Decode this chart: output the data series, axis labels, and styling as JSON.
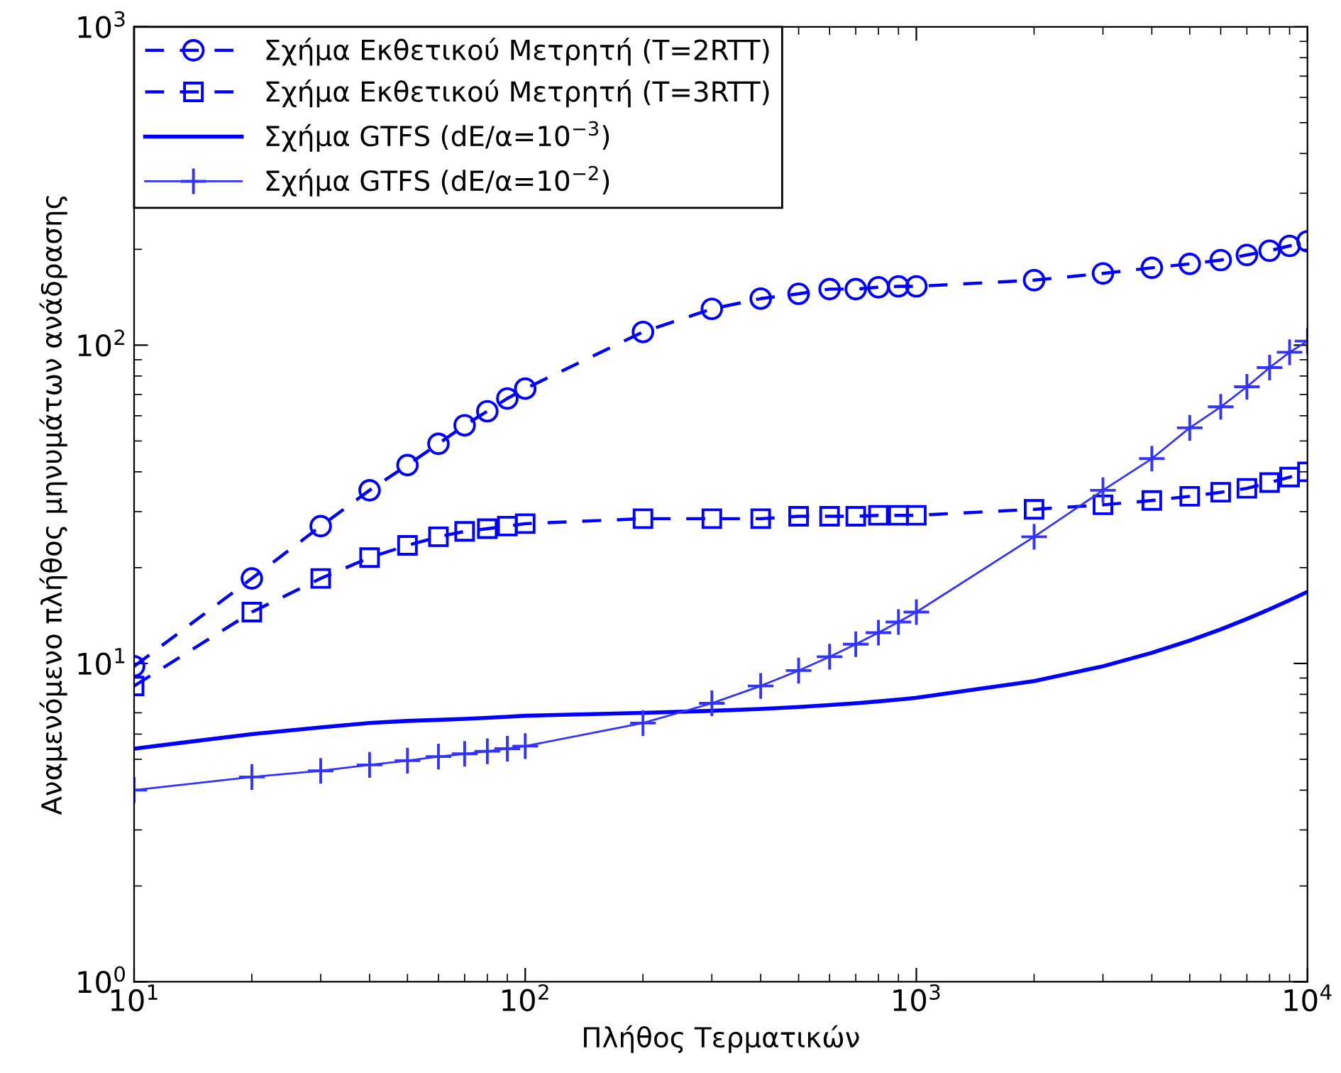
{
  "chart_data": {
    "type": "line",
    "xlabel": "Πλήθος Τερματικών",
    "ylabel": "Αναμενόμενο πλήθος μηνυμάτων ανάδρασης",
    "log": "xy",
    "grid": false,
    "legend": "top left",
    "x": [
      10,
      20,
      30,
      40,
      50,
      60,
      70,
      80,
      90,
      100,
      200,
      300,
      400,
      500,
      600,
      700,
      800,
      900,
      1000,
      2000,
      3000,
      4000,
      5000,
      6000,
      7000,
      8000,
      9000,
      10000
    ],
    "xlim": [
      10,
      10000
    ],
    "ylim": [
      1,
      1000
    ],
    "xticks": [
      {
        "value": 10,
        "label": "10$^{1}$"
      },
      {
        "value": 100,
        "label": "10$^{2}$"
      },
      {
        "value": 1000,
        "label": "10$^{3}$"
      },
      {
        "value": 10000,
        "label": "10$^{4}$"
      }
    ],
    "yticks": [
      {
        "value": 1,
        "label": "10$^{0}$"
      },
      {
        "value": 10,
        "label": "10$^{1}$"
      },
      {
        "value": 100,
        "label": "10$^{2}$"
      },
      {
        "value": 1000,
        "label": "10$^{3}$"
      }
    ],
    "series": [
      {
        "name": "Σχήμα Εκθετικού Μετρητή (T=2RTT)",
        "color": "#0000ff",
        "marker": "circle",
        "line_style": "dashed",
        "values": [
          9.8,
          18.5,
          27,
          35,
          42,
          49,
          56,
          62,
          68,
          73,
          110,
          130,
          140,
          145,
          150,
          150,
          152,
          153,
          153,
          160,
          168,
          175,
          180,
          185,
          192,
          198,
          205,
          212
        ]
      },
      {
        "name": "Σχήμα Εκθετικού Μετρητή (T=3RTT)",
        "color": "#0000ff",
        "marker": "square",
        "line_style": "dashed",
        "values": [
          8.5,
          14.5,
          18.5,
          21.5,
          23.5,
          25,
          26,
          26.5,
          27,
          27.5,
          28.5,
          28.5,
          28.5,
          29,
          29,
          29,
          29.2,
          29.2,
          29.2,
          30.5,
          31.5,
          32.5,
          33.5,
          34.5,
          35.5,
          37,
          38.5,
          40
        ]
      },
      {
        "name": "Σχήμα GTFS (dE/α=10$^{−3}$)",
        "color": "#0000ff",
        "marker": "none",
        "line_style": "solid",
        "values": [
          5.4,
          6.0,
          6.3,
          6.5,
          6.6,
          6.65,
          6.7,
          6.75,
          6.8,
          6.85,
          7.0,
          7.1,
          7.2,
          7.3,
          7.4,
          7.5,
          7.6,
          7.7,
          7.8,
          8.8,
          9.8,
          10.8,
          11.8,
          12.8,
          13.8,
          14.8,
          15.8,
          16.8
        ]
      },
      {
        "name": "Σχήμα GTFS (dE/α=10$^{−2}$)",
        "color": "#3333ff",
        "marker": "cross",
        "line_style": "solid",
        "values": [
          4.0,
          4.4,
          4.6,
          4.8,
          4.95,
          5.1,
          5.2,
          5.3,
          5.4,
          5.5,
          6.5,
          7.5,
          8.5,
          9.5,
          10.5,
          11.5,
          12.5,
          13.5,
          14.5,
          25,
          35,
          44,
          55,
          64,
          74,
          85,
          95,
          103
        ]
      }
    ]
  }
}
